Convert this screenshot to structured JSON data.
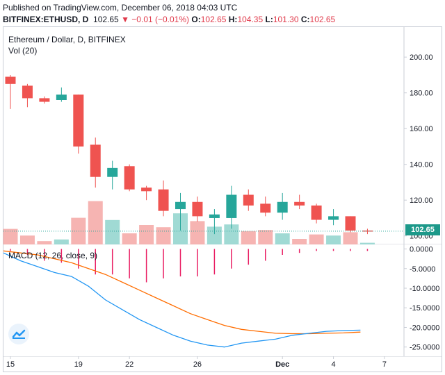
{
  "header": {
    "published": "Published on TradingView.com, December 06, 2018 04:03 UTC",
    "symbol": "BITFINEX:ETHUSD, D",
    "last": "102.65",
    "change_arrow": "▼",
    "change": "−0.01 (−0.01%)",
    "ohlc": [
      {
        "label": "O:",
        "value": "102.65"
      },
      {
        "label": "H:",
        "value": "104.35"
      },
      {
        "label": "L:",
        "value": "101.30"
      },
      {
        "label": "C:",
        "value": "102.65"
      }
    ]
  },
  "colors": {
    "up": "#26a69a",
    "down": "#ef5350",
    "vol_up": "#8fd4cc",
    "vol_down": "#f4a7a5",
    "macd": "#2196f3",
    "signal": "#ff6d00",
    "macd_hist": "#e91e63",
    "axis": "#c9cdd6"
  },
  "chart_data": {
    "type": "candlestick",
    "title": "Ethereum / Dollar, D, BITFINEX",
    "volume_label": "Vol (20)",
    "price_axis": {
      "ticks": [
        "200.00",
        "180.00",
        "160.00",
        "140.00",
        "120.00",
        "100.00"
      ],
      "ylim": [
        96,
        216
      ]
    },
    "last_price": "102.65",
    "x_ticks": [
      {
        "label": "15",
        "day": 0
      },
      {
        "label": "19",
        "day": 4
      },
      {
        "label": "22",
        "day": 7
      },
      {
        "label": "26",
        "day": 11
      },
      {
        "label": "Dec",
        "day": 16
      },
      {
        "label": "4",
        "day": 19
      },
      {
        "label": "7",
        "day": 22
      }
    ],
    "candles": [
      {
        "day": 0,
        "o": 189,
        "h": 190,
        "l": 171,
        "c": 185
      },
      {
        "day": 1,
        "o": 184,
        "h": 185,
        "l": 172,
        "c": 177
      },
      {
        "day": 2,
        "o": 177,
        "h": 178,
        "l": 174,
        "c": 175
      },
      {
        "day": 3,
        "o": 176,
        "h": 183,
        "l": 175,
        "c": 179
      },
      {
        "day": 4,
        "o": 179,
        "h": 179,
        "l": 146,
        "c": 150
      },
      {
        "day": 5,
        "o": 151,
        "h": 155,
        "l": 127,
        "c": 133
      },
      {
        "day": 6,
        "o": 133,
        "h": 142,
        "l": 126,
        "c": 138
      },
      {
        "day": 7,
        "o": 139,
        "h": 140,
        "l": 125,
        "c": 126
      },
      {
        "day": 8,
        "o": 127,
        "h": 128,
        "l": 120,
        "c": 125
      },
      {
        "day": 9,
        "o": 126,
        "h": 131,
        "l": 111,
        "c": 114
      },
      {
        "day": 10,
        "o": 115,
        "h": 124,
        "l": 103,
        "c": 119
      },
      {
        "day": 11,
        "o": 119,
        "h": 122,
        "l": 108,
        "c": 111
      },
      {
        "day": 12,
        "o": 110,
        "h": 115,
        "l": 101,
        "c": 112
      },
      {
        "day": 13,
        "o": 110,
        "h": 128,
        "l": 104,
        "c": 123
      },
      {
        "day": 14,
        "o": 123,
        "h": 126,
        "l": 114,
        "c": 117
      },
      {
        "day": 15,
        "o": 118,
        "h": 122,
        "l": 111,
        "c": 113
      },
      {
        "day": 16,
        "o": 113,
        "h": 124,
        "l": 109,
        "c": 119
      },
      {
        "day": 17,
        "o": 119,
        "h": 123,
        "l": 115,
        "c": 117
      },
      {
        "day": 18,
        "o": 117,
        "h": 118,
        "l": 107,
        "c": 109
      },
      {
        "day": 19,
        "o": 109,
        "h": 115,
        "l": 106,
        "c": 111
      },
      {
        "day": 20,
        "o": 111,
        "h": 111,
        "l": 102,
        "c": 103
      },
      {
        "day": 21,
        "o": 103,
        "h": 104,
        "l": 101,
        "c": 102.65
      }
    ],
    "volume": [
      {
        "day": 0,
        "v": 28,
        "up": false
      },
      {
        "day": 1,
        "v": 16,
        "up": false
      },
      {
        "day": 2,
        "v": 6,
        "up": false
      },
      {
        "day": 3,
        "v": 9,
        "up": true
      },
      {
        "day": 4,
        "v": 48,
        "up": false
      },
      {
        "day": 5,
        "v": 78,
        "up": false
      },
      {
        "day": 6,
        "v": 44,
        "up": true
      },
      {
        "day": 7,
        "v": 20,
        "up": false
      },
      {
        "day": 8,
        "v": 35,
        "up": false
      },
      {
        "day": 9,
        "v": 31,
        "up": false
      },
      {
        "day": 10,
        "v": 56,
        "up": true
      },
      {
        "day": 11,
        "v": 42,
        "up": false
      },
      {
        "day": 12,
        "v": 32,
        "up": true
      },
      {
        "day": 13,
        "v": 36,
        "up": true
      },
      {
        "day": 14,
        "v": 24,
        "up": false
      },
      {
        "day": 15,
        "v": 26,
        "up": false
      },
      {
        "day": 16,
        "v": 20,
        "up": true
      },
      {
        "day": 17,
        "v": 10,
        "up": false
      },
      {
        "day": 18,
        "v": 18,
        "up": false
      },
      {
        "day": 19,
        "v": 16,
        "up": true
      },
      {
        "day": 20,
        "v": 22,
        "up": false
      },
      {
        "day": 21,
        "v": 3,
        "up": true
      }
    ],
    "macd_panel": {
      "label": "MACD (12, 26, close, 9)",
      "ticks": [
        "0.0000",
        "-5.0000",
        "-10.0000",
        "-15.0000",
        "-20.0000",
        "-25.0000"
      ],
      "ylim": [
        -27,
        0.8
      ],
      "macd": [
        -1.0,
        -3.0,
        -4.5,
        -6.0,
        -7.0,
        -9.5,
        -13.0,
        -15.5,
        -18.0,
        -20.0,
        -22.0,
        -23.5,
        -24.5,
        -25.0,
        -24.0,
        -23.5,
        -23.0,
        -22.0,
        -21.5,
        -21.0,
        -20.8,
        -20.7
      ],
      "signal": [
        -0.5,
        -1.0,
        -1.5,
        -2.5,
        -3.5,
        -5.0,
        -6.5,
        -8.5,
        -10.5,
        -12.5,
        -14.5,
        -16.5,
        -18.0,
        -19.5,
        -20.5,
        -21.0,
        -21.5,
        -21.6,
        -21.6,
        -21.5,
        -21.4,
        -21.2
      ],
      "histogram": [
        -0.5,
        -1.5,
        -3.0,
        -3.5,
        -5.0,
        -6.5,
        -6.5,
        -7.5,
        -8.5,
        -7.5,
        -7.0,
        -7.0,
        -6.5,
        -5.0,
        -4.0,
        -3.0,
        -1.5,
        -1.0,
        -0.5,
        -0.5,
        -0.5,
        -0.5
      ]
    }
  }
}
